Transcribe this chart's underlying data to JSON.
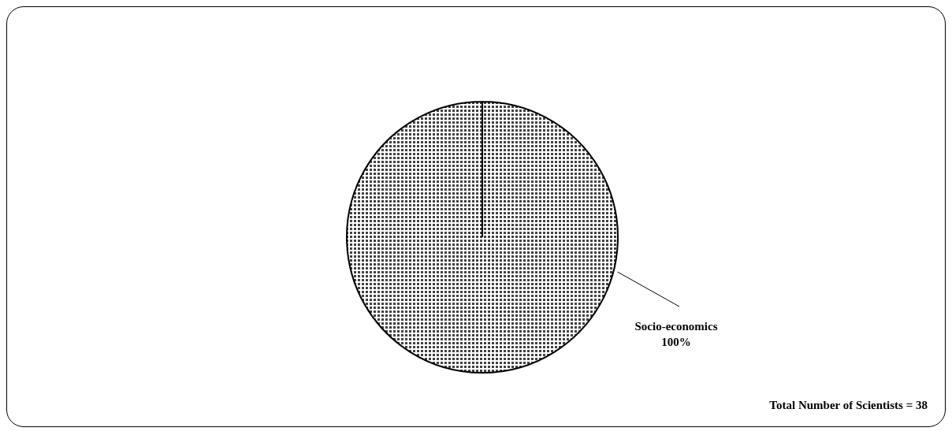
{
  "chart_data": {
    "type": "pie",
    "categories": [
      "Socio-economics"
    ],
    "values": [
      100
    ],
    "colors": [
      "#404040"
    ],
    "value_labels": [
      "100%"
    ],
    "annotations": [
      "Total Number of Scientists = 38"
    ]
  }
}
